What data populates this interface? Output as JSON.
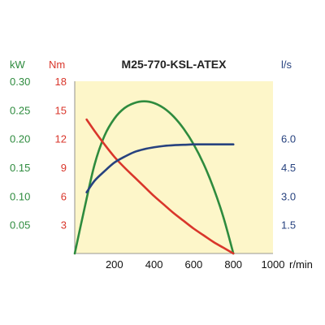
{
  "chart_data": {
    "type": "line",
    "title": "M25-770-KSL-ATEX",
    "x_axis": {
      "label": "r/min",
      "range": [
        0,
        1000
      ],
      "ticks": [
        200,
        400,
        600,
        800,
        1000
      ],
      "tick_labels": [
        "200",
        "400",
        "600",
        "800",
        "1000"
      ],
      "origin": 0
    },
    "y_axes": {
      "kw": {
        "label": "kW",
        "range": [
          0,
          0.3
        ],
        "ticks": [
          0.05,
          0.1,
          0.15,
          0.2,
          0.25,
          0.3
        ],
        "tick_labels": [
          "0.05",
          "0.10",
          "0.15",
          "0.20",
          "0.25",
          "0.30"
        ]
      },
      "nm": {
        "label": "Nm",
        "range": [
          0,
          18
        ],
        "ticks": [
          3,
          6,
          9,
          12,
          15,
          18
        ],
        "tick_labels": [
          "3",
          "6",
          "9",
          "12",
          "15",
          "18"
        ]
      },
      "ls": {
        "label": "l/s",
        "range": [
          0,
          9
        ],
        "ticks": [
          1.5,
          3.0,
          4.5,
          6.0
        ],
        "tick_labels": [
          "1.5",
          "3.0",
          "4.5",
          "6.0"
        ]
      }
    },
    "series": [
      {
        "axis": "kw",
        "color": "#2e8b3e",
        "x": [
          0,
          50,
          100,
          150,
          200,
          250,
          300,
          350,
          400,
          450,
          500,
          550,
          600,
          650,
          700,
          750,
          800
        ],
        "y": [
          0.0,
          0.08,
          0.155,
          0.205,
          0.235,
          0.253,
          0.262,
          0.265,
          0.262,
          0.253,
          0.238,
          0.217,
          0.19,
          0.156,
          0.114,
          0.063,
          0.0
        ]
      },
      {
        "axis": "nm",
        "color": "#d9362b",
        "x": [
          60,
          100,
          150,
          200,
          250,
          300,
          350,
          400,
          450,
          500,
          550,
          600,
          650,
          700,
          750,
          800
        ],
        "y": [
          14.0,
          12.8,
          11.4,
          10.1,
          9.0,
          8.0,
          7.0,
          6.0,
          5.1,
          4.2,
          3.4,
          2.6,
          1.9,
          1.2,
          0.6,
          0.0
        ]
      },
      {
        "axis": "ls",
        "color": "#27427f",
        "x": [
          60,
          100,
          150,
          200,
          250,
          300,
          350,
          400,
          450,
          500,
          550,
          600,
          650,
          700,
          750,
          800
        ],
        "y": [
          3.2,
          3.8,
          4.3,
          4.75,
          5.05,
          5.3,
          5.45,
          5.55,
          5.62,
          5.66,
          5.68,
          5.7,
          5.7,
          5.7,
          5.7,
          5.7
        ]
      }
    ],
    "colors": {
      "plot_background": "#fdf6c9",
      "kw": "#2e8b3e",
      "nm": "#d9362b",
      "ls": "#27427f",
      "title": "#222222",
      "x_axis": "#111111"
    },
    "grid": false
  }
}
